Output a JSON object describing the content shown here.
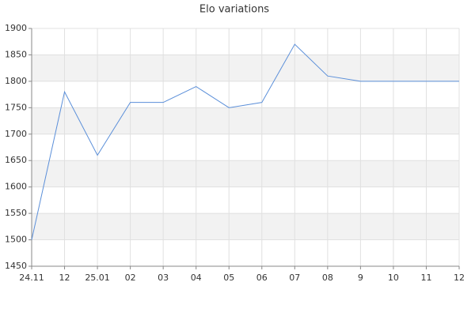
{
  "chart_data": {
    "type": "line",
    "title": "Elo variations",
    "categories": [
      "24.11",
      "12",
      "25.01",
      "02",
      "03",
      "04",
      "05",
      "06",
      "07",
      "08",
      "9",
      "10",
      "11",
      "12"
    ],
    "series": [
      {
        "name": "Elo",
        "color": "#5b8fd9",
        "values": [
          1500,
          1780,
          1660,
          1760,
          1760,
          1790,
          1750,
          1760,
          1870,
          1810,
          1800,
          1800,
          1800,
          1800
        ]
      }
    ],
    "ylim": [
      1450,
      1900
    ],
    "yticks": [
      1450,
      1500,
      1550,
      1600,
      1650,
      1700,
      1750,
      1800,
      1850,
      1900
    ],
    "grid": true
  }
}
